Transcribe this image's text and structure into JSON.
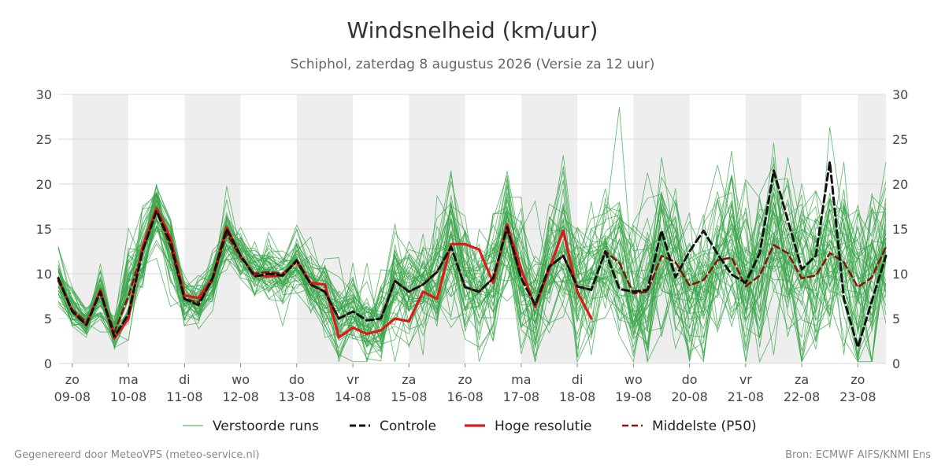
{
  "title": "Windsnelheid (km/uur)",
  "subtitle": "Schiphol, zaterdag  8 augustus 2026 (Versie za 12 uur)",
  "footer": {
    "left": "Gegenereerd door MeteoVPS (meteo-service.nl)",
    "right": "Bron: ECMWF AIFS/KNMI Ens"
  },
  "colors": {
    "ensemble": "#3aa64a",
    "control": "#111111",
    "hires": "#dd1a1a",
    "median": "#8b1010",
    "weekend_band": "#eeeeee",
    "grid": "#d9d9d9"
  },
  "chart_data": {
    "type": "line",
    "title": "Windsnelheid (km/uur)",
    "subtitle": "Schiphol, zaterdag  8 augustus 2026 (Versie za 12 uur)",
    "x_unit": "days since 09-08 00:00 (tick positions at midnight)",
    "xlim": [
      -0.25,
      14.5
    ],
    "ylim": [
      0,
      30
    ],
    "yticks": [
      0,
      5,
      10,
      15,
      20,
      25,
      30
    ],
    "grid": true,
    "legend_position": "bottom",
    "shaded_days": [
      [
        0,
        1
      ],
      [
        2,
        3
      ],
      [
        4,
        5
      ],
      [
        6,
        7
      ],
      [
        8,
        9
      ],
      [
        10,
        11
      ],
      [
        12,
        13
      ],
      [
        14,
        14.5
      ]
    ],
    "xticks": [
      {
        "day": "zo",
        "date": "09-08"
      },
      {
        "day": "ma",
        "date": "10-08"
      },
      {
        "day": "di",
        "date": "11-08"
      },
      {
        "day": "wo",
        "date": "12-08"
      },
      {
        "day": "do",
        "date": "13-08"
      },
      {
        "day": "vr",
        "date": "14-08"
      },
      {
        "day": "za",
        "date": "15-08"
      },
      {
        "day": "zo",
        "date": "16-08"
      },
      {
        "day": "ma",
        "date": "17-08"
      },
      {
        "day": "di",
        "date": "18-08"
      },
      {
        "day": "wo",
        "date": "19-08"
      },
      {
        "day": "do",
        "date": "20-08"
      },
      {
        "day": "vr",
        "date": "21-08"
      },
      {
        "day": "za",
        "date": "22-08"
      },
      {
        "day": "zo",
        "date": "23-08"
      }
    ],
    "series": [
      {
        "name": "Controle",
        "style": "dashed",
        "x": [
          -0.25,
          0,
          0.25,
          0.5,
          0.75,
          1,
          1.25,
          1.5,
          1.75,
          2,
          2.25,
          2.5,
          2.75,
          3,
          3.25,
          3.5,
          3.75,
          4,
          4.25,
          4.5,
          4.75,
          5,
          5.25,
          5.5,
          5.75,
          6,
          6.25,
          6.5,
          6.75,
          7,
          7.25,
          7.5,
          7.75,
          8,
          8.25,
          8.5,
          8.75,
          9,
          9.25,
          9.5,
          9.75,
          10,
          10.25,
          10.5,
          10.75,
          11,
          11.25,
          11.5,
          11.75,
          12,
          12.25,
          12.5,
          12.75,
          13,
          13.25,
          13.5,
          13.75,
          14,
          14.25,
          14.5
        ],
        "values": [
          9.5,
          5.8,
          4.3,
          8.0,
          3.0,
          5.5,
          12.5,
          17.0,
          13.5,
          7.2,
          6.5,
          9.5,
          15.0,
          12.0,
          9.7,
          10.0,
          9.8,
          11.5,
          8.8,
          8.0,
          5.0,
          5.8,
          4.8,
          5.0,
          9.2,
          8.0,
          8.8,
          10.2,
          13.0,
          8.5,
          8.0,
          9.5,
          15.2,
          9.5,
          6.5,
          10.8,
          12.0,
          8.6,
          8.2,
          12.5,
          8.3,
          8.0,
          8.2,
          14.8,
          9.6,
          12.5,
          14.8,
          12.2,
          9.9,
          9.0,
          12.3,
          21.5,
          16.0,
          10.5,
          12.0,
          22.5,
          7.2,
          1.8,
          7.0,
          12.0
        ]
      },
      {
        "name": "Hoge resolutie",
        "style": "solid",
        "x": [
          -0.25,
          0,
          0.25,
          0.5,
          0.75,
          1,
          1.25,
          1.5,
          1.75,
          2,
          2.25,
          2.5,
          2.75,
          3,
          3.25,
          3.5,
          3.75,
          4,
          4.25,
          4.5,
          4.75,
          5,
          5.25,
          5.5,
          5.75,
          6,
          6.25,
          6.5,
          6.75,
          7,
          7.25,
          7.5,
          7.75,
          8,
          8.25,
          8.5,
          8.75,
          9,
          9.25
        ],
        "values": [
          9.5,
          5.8,
          4.3,
          8.2,
          2.8,
          5.0,
          13.0,
          17.3,
          14.0,
          7.6,
          7.3,
          9.5,
          15.2,
          12.0,
          9.8,
          9.7,
          9.8,
          11.5,
          9.0,
          8.8,
          2.9,
          4.0,
          3.3,
          3.7,
          5.0,
          4.7,
          8.0,
          7.2,
          13.3,
          13.3,
          12.7,
          9.0,
          15.5,
          10.5,
          6.3,
          10.5,
          14.8,
          8.0,
          5.0
        ]
      },
      {
        "name": "Middelste (P50)",
        "style": "dashed",
        "x": [
          -0.25,
          0,
          0.25,
          0.5,
          0.75,
          1,
          1.25,
          1.5,
          1.75,
          2,
          2.25,
          2.5,
          2.75,
          3,
          3.25,
          3.5,
          3.75,
          4,
          4.25,
          4.5,
          4.75,
          5,
          5.25,
          5.5,
          5.75,
          6,
          6.25,
          6.5,
          6.75,
          7,
          7.25,
          7.5,
          7.75,
          8,
          8.25,
          8.5,
          8.75,
          9,
          9.25,
          9.5,
          9.75,
          10,
          10.25,
          10.5,
          10.75,
          11,
          11.25,
          11.5,
          11.75,
          12,
          12.25,
          12.5,
          12.75,
          13,
          13.25,
          13.5,
          13.75,
          14,
          14.25,
          14.5
        ],
        "values": [
          9.2,
          6.0,
          4.6,
          7.8,
          3.5,
          7.5,
          12.5,
          17.0,
          13.0,
          7.2,
          6.8,
          9.3,
          14.5,
          11.8,
          10.0,
          10.2,
          10.0,
          11.3,
          8.8,
          8.0,
          5.0,
          5.8,
          4.8,
          5.0,
          9.2,
          8.0,
          8.8,
          10.2,
          13.0,
          8.5,
          8.0,
          9.5,
          15.0,
          9.5,
          6.5,
          10.8,
          12.0,
          8.6,
          8.2,
          12.5,
          11.2,
          7.8,
          8.0,
          12.0,
          11.3,
          8.7,
          9.3,
          11.5,
          11.8,
          8.6,
          9.8,
          13.2,
          12.3,
          9.5,
          9.8,
          12.3,
          11.3,
          8.5,
          9.6,
          13.0
        ]
      }
    ],
    "ensemble": {
      "name": "Verstoorde runs",
      "count": 50,
      "x": [
        -0.25,
        0,
        0.25,
        0.5,
        0.75,
        1,
        1.25,
        1.5,
        1.75,
        2,
        2.25,
        2.5,
        2.75,
        3,
        3.25,
        3.5,
        3.75,
        4,
        4.25,
        4.5,
        4.75,
        5,
        5.25,
        5.5,
        5.75,
        6,
        6.25,
        6.5,
        6.75,
        7,
        7.25,
        7.5,
        7.75,
        8,
        8.25,
        8.5,
        8.75,
        9,
        9.25,
        9.5,
        9.75,
        10,
        10.25,
        10.5,
        10.75,
        11,
        11.25,
        11.5,
        11.75,
        12,
        12.25,
        12.5,
        12.75,
        13,
        13.25,
        13.5,
        13.75,
        14,
        14.25,
        14.5
      ],
      "spread": [
        2.0,
        1.5,
        1.0,
        2.5,
        1.2,
        3.5,
        3.0,
        2.5,
        2.5,
        1.5,
        1.5,
        1.8,
        2.0,
        1.5,
        1.5,
        1.8,
        2.0,
        2.0,
        2.0,
        2.5,
        2.5,
        3.0,
        3.0,
        3.2,
        3.5,
        3.5,
        3.5,
        3.8,
        4.0,
        4.0,
        4.0,
        4.2,
        4.2,
        4.5,
        4.5,
        4.5,
        4.5,
        4.5,
        4.5,
        4.5,
        4.8,
        5.0,
        5.0,
        5.0,
        5.0,
        5.0,
        5.0,
        5.2,
        5.2,
        5.5,
        5.5,
        5.5,
        5.5,
        5.5,
        5.5,
        5.5,
        5.5,
        5.5,
        5.5,
        5.5
      ],
      "y_min": 0.2,
      "y_max": 29.6
    }
  },
  "legend": [
    {
      "key": "ensemble",
      "label": "Verstoorde runs"
    },
    {
      "key": "control",
      "label": "Controle"
    },
    {
      "key": "hires",
      "label": "Hoge resolutie"
    },
    {
      "key": "median",
      "label": "Middelste (P50)"
    }
  ]
}
